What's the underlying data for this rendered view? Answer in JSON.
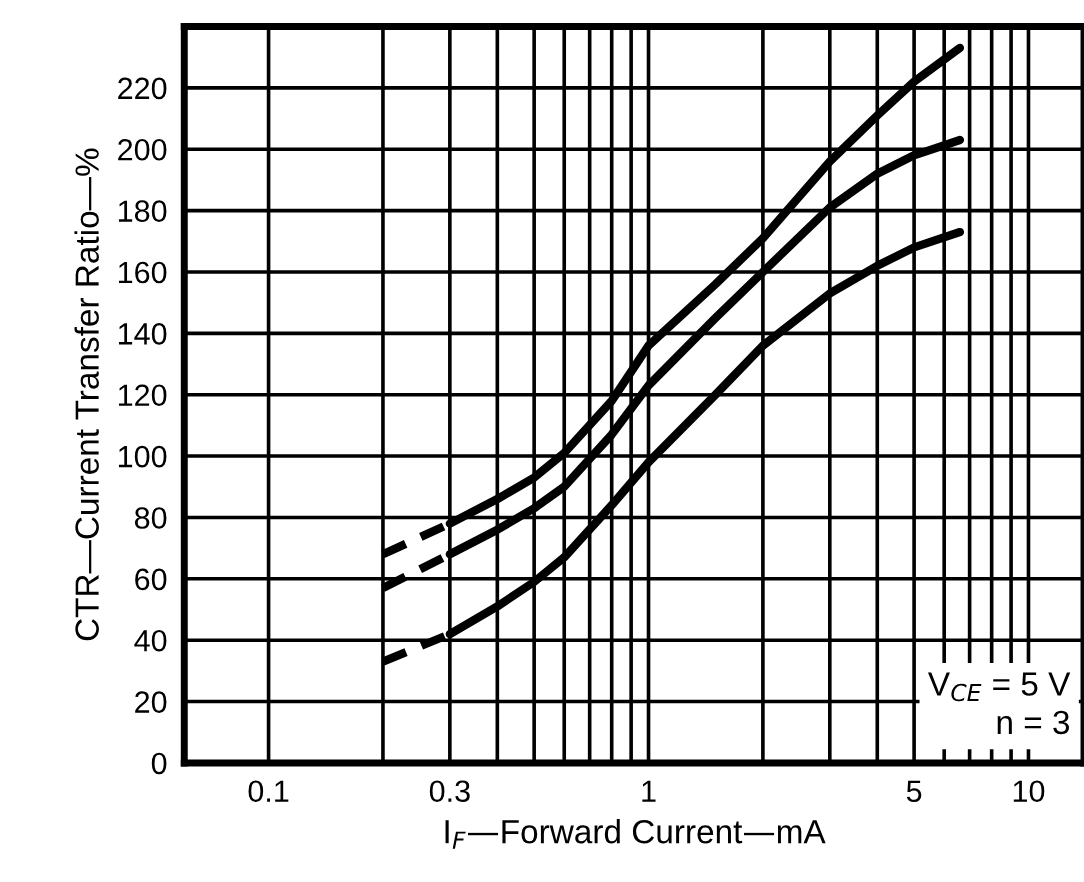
{
  "chart_data": {
    "type": "line",
    "xlabel": "I$_{F}$—Forward Current—mA",
    "ylabel": "CTR—Current Transfer Ratio—%",
    "log": "x",
    "xlim": [
      0.06,
      14
    ],
    "ylim": [
      0,
      240
    ],
    "xticks": [
      0.1,
      {
        "value": 0.2,
        "label": null
      },
      0.3,
      {
        "value": 0.4,
        "label": null
      },
      {
        "value": 0.5,
        "label": null
      },
      {
        "value": 0.6,
        "label": null
      },
      {
        "value": 0.7,
        "label": null
      },
      {
        "value": 0.8,
        "label": null
      },
      {
        "value": 0.9,
        "label": null
      },
      1,
      {
        "value": 2,
        "label": null
      },
      {
        "value": 3,
        "label": null
      },
      {
        "value": 4,
        "label": null
      },
      5,
      {
        "value": 6,
        "label": null
      },
      {
        "value": 7,
        "label": null
      },
      {
        "value": 8,
        "label": null
      },
      {
        "value": 9,
        "label": null
      },
      10
    ],
    "yticks": [
      0,
      20,
      40,
      60,
      80,
      100,
      120,
      140,
      160,
      180,
      200,
      220,
      {
        "value": 240,
        "label": null
      }
    ],
    "grid": true,
    "legend": false,
    "marker": "none",
    "series": [
      {
        "color": "#000000",
        "line_style": "dashed",
        "x": [
          0.2,
          0.3
        ],
        "values": [
          68,
          78
        ]
      },
      {
        "color": "#000000",
        "line_style": "solid",
        "x": [
          0.3,
          0.4,
          0.5,
          0.6,
          0.8,
          1,
          1.5,
          2,
          3,
          4,
          5,
          6.6
        ],
        "values": [
          78,
          86,
          93,
          101,
          118,
          136,
          156,
          171,
          196,
          211,
          222,
          233
        ]
      },
      {
        "color": "#000000",
        "line_style": "dashed",
        "x": [
          0.2,
          0.3
        ],
        "values": [
          57,
          68
        ]
      },
      {
        "color": "#000000",
        "line_style": "solid",
        "x": [
          0.3,
          0.4,
          0.5,
          0.6,
          0.8,
          1,
          1.5,
          2,
          3,
          4,
          5,
          6.6
        ],
        "values": [
          68,
          76,
          83,
          90,
          107,
          123,
          145,
          160,
          181,
          192,
          198,
          203
        ]
      },
      {
        "color": "#000000",
        "line_style": "dashed",
        "x": [
          0.2,
          0.3
        ],
        "values": [
          33,
          42
        ]
      },
      {
        "color": "#000000",
        "line_style": "solid",
        "x": [
          0.3,
          0.4,
          0.5,
          0.6,
          0.8,
          1,
          1.5,
          2,
          3,
          4,
          5,
          6.6
        ],
        "values": [
          42,
          51,
          59,
          67,
          84,
          98,
          120,
          136,
          153,
          162,
          168,
          173
        ]
      }
    ],
    "annotations": [
      "V$_{CE}$ = 5 V",
      "n = 3"
    ]
  }
}
